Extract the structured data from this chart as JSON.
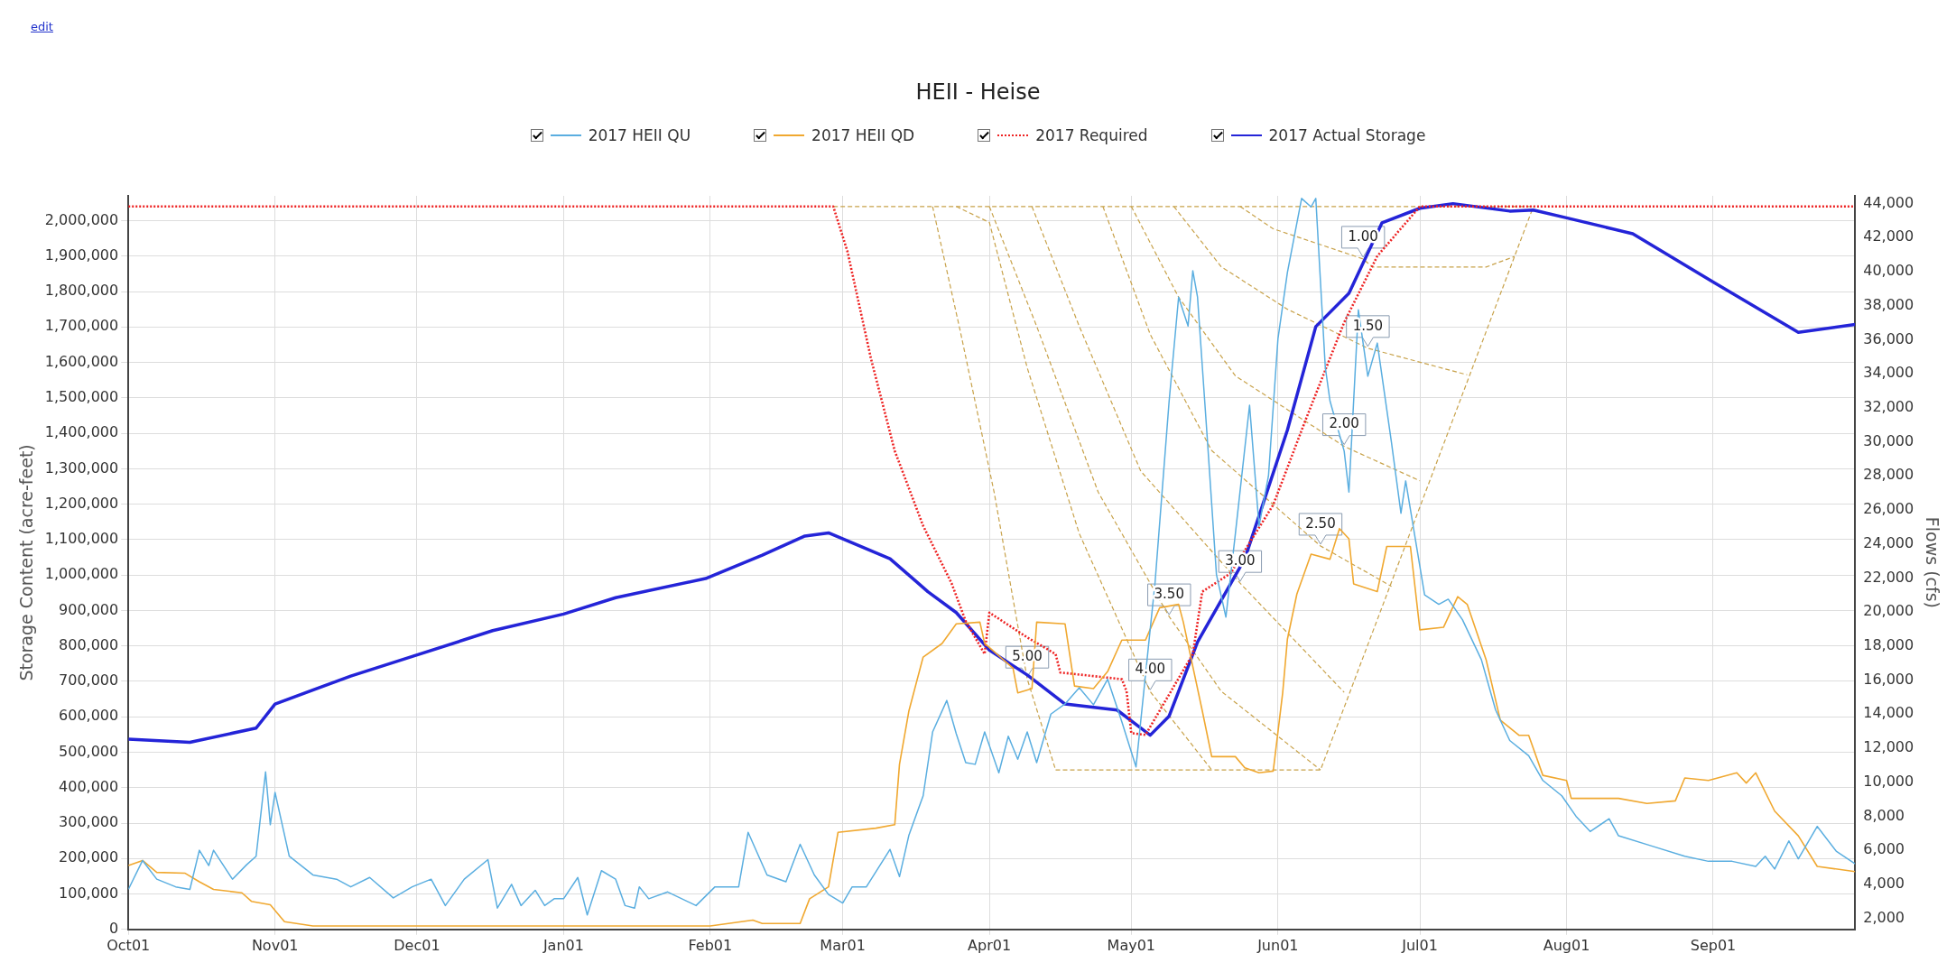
{
  "chart_data": {
    "type": "line",
    "title": "HEII  - Heise",
    "ylabel": "Storage Content (acre-feet)",
    "y2label": "Flows (cfs)",
    "xlim": [
      "2016-10-01",
      "2017-10-01"
    ],
    "xticks": [
      {
        "value": "2016-10-01",
        "label": "Oct01"
      },
      {
        "value": "2016-11-01",
        "label": "Nov01"
      },
      {
        "value": "2016-12-01",
        "label": "Dec01"
      },
      {
        "value": "2017-01-01",
        "label": "Jan01"
      },
      {
        "value": "2017-02-01",
        "label": "Feb01"
      },
      {
        "value": "2017-03-01",
        "label": "Mar01"
      },
      {
        "value": "2017-04-01",
        "label": "Apr01"
      },
      {
        "value": "2017-05-01",
        "label": "May01"
      },
      {
        "value": "2017-06-01",
        "label": "Jun01"
      },
      {
        "value": "2017-07-01",
        "label": "Jul01"
      },
      {
        "value": "2017-08-01",
        "label": "Aug01"
      },
      {
        "value": "2017-09-01",
        "label": "Sep01"
      }
    ],
    "ylim": [
      0,
      2070000
    ],
    "yticks": [
      0,
      {
        "value": 100000,
        "label": "100,000"
      },
      {
        "value": 200000,
        "label": "200,000"
      },
      {
        "value": 300000,
        "label": "300,000"
      },
      {
        "value": 400000,
        "label": "400,000"
      },
      {
        "value": 500000,
        "label": "500,000"
      },
      {
        "value": 600000,
        "label": "600,000"
      },
      {
        "value": 700000,
        "label": "700,000"
      },
      {
        "value": 800000,
        "label": "800,000"
      },
      {
        "value": 900000,
        "label": "900,000"
      },
      {
        "value": 1000000,
        "label": "1,000,000"
      },
      {
        "value": 1100000,
        "label": "1,100,000"
      },
      {
        "value": 1200000,
        "label": "1,200,000"
      },
      {
        "value": 1300000,
        "label": "1,300,000"
      },
      {
        "value": 1400000,
        "label": "1,400,000"
      },
      {
        "value": 1500000,
        "label": "1,500,000"
      },
      {
        "value": 1600000,
        "label": "1,600,000"
      },
      {
        "value": 1700000,
        "label": "1,700,000"
      },
      {
        "value": 1800000,
        "label": "1,800,000"
      },
      {
        "value": 1900000,
        "label": "1,900,000"
      },
      {
        "value": 2000000,
        "label": "2,000,000"
      }
    ],
    "y2lim": [
      1350,
      44450
    ],
    "y2ticks": [
      {
        "value": 2000,
        "label": "2,000"
      },
      {
        "value": 4000,
        "label": "4,000"
      },
      {
        "value": 6000,
        "label": "6,000"
      },
      {
        "value": 8000,
        "label": "8,000"
      },
      {
        "value": 10000,
        "label": "10,000"
      },
      {
        "value": 12000,
        "label": "12,000"
      },
      {
        "value": 14000,
        "label": "14,000"
      },
      {
        "value": 16000,
        "label": "16,000"
      },
      {
        "value": 18000,
        "label": "18,000"
      },
      {
        "value": 20000,
        "label": "20,000"
      },
      {
        "value": 22000,
        "label": "22,000"
      },
      {
        "value": 24000,
        "label": "24,000"
      },
      {
        "value": 26000,
        "label": "26,000"
      },
      {
        "value": 28000,
        "label": "28,000"
      },
      {
        "value": 30000,
        "label": "30,000"
      },
      {
        "value": 32000,
        "label": "32,000"
      },
      {
        "value": 34000,
        "label": "34,000"
      },
      {
        "value": 36000,
        "label": "36,000"
      },
      {
        "value": 38000,
        "label": "38,000"
      },
      {
        "value": 40000,
        "label": "40,000"
      },
      {
        "value": 42000,
        "label": "42,000"
      },
      {
        "value": 44000,
        "label": "44,000"
      }
    ],
    "grid": true,
    "legend": "top",
    "series": [
      {
        "name": "2017 HEII QU",
        "color": "#5aaee0",
        "axis": "y2",
        "line_style": "solid",
        "x": [
          "2016-10-01",
          "2016-10-04",
          "2016-10-07",
          "2016-10-11",
          "2016-10-14",
          "2016-10-16",
          "2016-10-18",
          "2016-10-19",
          "2016-10-23",
          "2016-10-26",
          "2016-10-28",
          "2016-10-30",
          "2016-10-31",
          "2016-11-01",
          "2016-11-04",
          "2016-11-09",
          "2016-11-14",
          "2016-11-17",
          "2016-11-21",
          "2016-11-26",
          "2016-11-30",
          "2016-12-04",
          "2016-12-07",
          "2016-12-11",
          "2016-12-16",
          "2016-12-18",
          "2016-12-21",
          "2016-12-23",
          "2016-12-26",
          "2016-12-28",
          "2016-12-30",
          "2017-01-01",
          "2017-01-04",
          "2017-01-06",
          "2017-01-09",
          "2017-01-12",
          "2017-01-14",
          "2017-01-16",
          "2017-01-17",
          "2017-01-19",
          "2017-01-23",
          "2017-01-29",
          "2017-02-02",
          "2017-02-07",
          "2017-02-09",
          "2017-02-13",
          "2017-02-17",
          "2017-02-20",
          "2017-02-23",
          "2017-02-26",
          "2017-03-01",
          "2017-03-03",
          "2017-03-06",
          "2017-03-11",
          "2017-03-13",
          "2017-03-15",
          "2017-03-18",
          "2017-03-20",
          "2017-03-23",
          "2017-03-25",
          "2017-03-27",
          "2017-03-29",
          "2017-03-31",
          "2017-04-03",
          "2017-04-05",
          "2017-04-07",
          "2017-04-09",
          "2017-04-11",
          "2017-04-14",
          "2017-04-17",
          "2017-04-20",
          "2017-04-23",
          "2017-04-26",
          "2017-04-29",
          "2017-05-02",
          "2017-05-05",
          "2017-05-06",
          "2017-05-09",
          "2017-05-11",
          "2017-05-13",
          "2017-05-14",
          "2017-05-15",
          "2017-05-17",
          "2017-05-19",
          "2017-05-21",
          "2017-05-23",
          "2017-05-26",
          "2017-05-28",
          "2017-05-30",
          "2017-06-01",
          "2017-06-03",
          "2017-06-06",
          "2017-06-08",
          "2017-06-09",
          "2017-06-11",
          "2017-06-12",
          "2017-06-15",
          "2017-06-16",
          "2017-06-18",
          "2017-06-20",
          "2017-06-22",
          "2017-06-25",
          "2017-06-27",
          "2017-06-28",
          "2017-07-02",
          "2017-07-05",
          "2017-07-07",
          "2017-07-10",
          "2017-07-14",
          "2017-07-17",
          "2017-07-20",
          "2017-07-24",
          "2017-07-27",
          "2017-07-31",
          "2017-08-03",
          "2017-08-06",
          "2017-08-10",
          "2017-08-12",
          "2017-08-19",
          "2017-08-26",
          "2017-08-31",
          "2017-09-05",
          "2017-09-10",
          "2017-09-12",
          "2017-09-14",
          "2017-09-17",
          "2017-09-19",
          "2017-09-23",
          "2017-09-27",
          "2017-10-01"
        ],
        "values": [
          3700,
          5400,
          4300,
          3850,
          3700,
          6000,
          5100,
          6000,
          4300,
          5150,
          5650,
          10600,
          7500,
          9400,
          5650,
          4550,
          4300,
          3850,
          4400,
          3200,
          3850,
          4300,
          2750,
          4300,
          5450,
          2600,
          4000,
          2750,
          3650,
          2750,
          3150,
          3150,
          4400,
          2200,
          4800,
          4300,
          2750,
          2600,
          3850,
          3150,
          3550,
          2750,
          3850,
          3850,
          7050,
          4550,
          4150,
          6350,
          4550,
          3400,
          2900,
          3850,
          3850,
          6050,
          4450,
          6900,
          9200,
          12950,
          14800,
          12850,
          11150,
          11050,
          12950,
          10550,
          12700,
          11350,
          12950,
          11150,
          14000,
          14600,
          15550,
          14550,
          16050,
          13550,
          10900,
          19000,
          21650,
          32400,
          38500,
          36800,
          40050,
          38500,
          30450,
          22200,
          19700,
          24600,
          32150,
          25050,
          28000,
          36050,
          39950,
          44300,
          43800,
          44300,
          34400,
          32400,
          29450,
          27050,
          37750,
          33850,
          35800,
          29950,
          25800,
          27700,
          21000,
          20450,
          20750,
          19550,
          17200,
          14250,
          12450,
          11550,
          10100,
          9200,
          8000,
          7100,
          7850,
          6850,
          6250,
          5650,
          5350,
          5350,
          5050,
          5650,
          4900,
          6550,
          5500,
          7400,
          5950,
          5200
        ]
      },
      {
        "name": "2017 HEII QD",
        "color": "#f0a830",
        "axis": "y2",
        "line_style": "solid",
        "x": [
          "2016-10-01",
          "2016-10-04",
          "2016-10-07",
          "2016-10-13",
          "2016-10-16",
          "2016-10-19",
          "2016-10-25",
          "2016-10-27",
          "2016-10-31",
          "2016-11-03",
          "2016-11-09",
          "2017-02-01",
          "2017-02-10",
          "2017-02-12",
          "2017-02-20",
          "2017-02-22",
          "2017-02-26",
          "2017-02-28",
          "2017-03-08",
          "2017-03-12",
          "2017-03-13",
          "2017-03-15",
          "2017-03-18",
          "2017-03-22",
          "2017-03-25",
          "2017-03-30",
          "2017-03-31",
          "2017-04-06",
          "2017-04-07",
          "2017-04-10",
          "2017-04-11",
          "2017-04-17",
          "2017-04-19",
          "2017-04-23",
          "2017-04-26",
          "2017-04-29",
          "2017-05-04",
          "2017-05-07",
          "2017-05-11",
          "2017-05-12",
          "2017-05-16",
          "2017-05-18",
          "2017-05-23",
          "2017-05-25",
          "2017-05-28",
          "2017-05-31",
          "2017-06-02",
          "2017-06-03",
          "2017-06-05",
          "2017-06-08",
          "2017-06-12",
          "2017-06-14",
          "2017-06-16",
          "2017-06-17",
          "2017-06-22",
          "2017-06-24",
          "2017-06-29",
          "2017-07-01",
          "2017-07-06",
          "2017-07-09",
          "2017-07-11",
          "2017-07-15",
          "2017-07-18",
          "2017-07-22",
          "2017-07-24",
          "2017-07-27",
          "2017-08-01",
          "2017-08-02",
          "2017-08-12",
          "2017-08-18",
          "2017-08-24",
          "2017-08-26",
          "2017-08-31",
          "2017-09-06",
          "2017-09-08",
          "2017-09-10",
          "2017-09-14",
          "2017-09-19",
          "2017-09-23",
          "2017-10-01"
        ],
        "values": [
          5100,
          5400,
          4700,
          4650,
          4150,
          3700,
          3500,
          3000,
          2800,
          1800,
          1550,
          1550,
          1900,
          1700,
          1700,
          3150,
          3850,
          7050,
          7300,
          7500,
          11050,
          14200,
          17350,
          18150,
          19300,
          19400,
          18150,
          16700,
          15250,
          15500,
          19400,
          19300,
          15650,
          15500,
          16500,
          18350,
          18350,
          20250,
          20450,
          19400,
          14200,
          11500,
          11500,
          10850,
          10550,
          10650,
          15250,
          18400,
          21050,
          23400,
          23100,
          24900,
          24300,
          21650,
          21200,
          23850,
          23850,
          18950,
          19100,
          20900,
          20450,
          17200,
          13650,
          12750,
          12750,
          10400,
          10100,
          9050,
          9050,
          8750,
          8900,
          10250,
          10100,
          10550,
          9950,
          10550,
          8300,
          6850,
          5050,
          4750
        ]
      },
      {
        "name": "2017 Required",
        "color": "#ee2222",
        "line_style": "dotted",
        "x": [
          "2016-10-01",
          "2017-02-27",
          "2017-03-02",
          "2017-03-07",
          "2017-03-12",
          "2017-03-18",
          "2017-03-24",
          "2017-03-27",
          "2017-03-31",
          "2017-04-01",
          "2017-04-09",
          "2017-04-15",
          "2017-04-16",
          "2017-04-29",
          "2017-04-30",
          "2017-05-01",
          "2017-05-04",
          "2017-05-14",
          "2017-05-16",
          "2017-05-22",
          "2017-05-31",
          "2017-06-07",
          "2017-06-15",
          "2017-06-22",
          "2017-07-01",
          "2017-10-01"
        ],
        "values": [
          2040000,
          2040000,
          1913000,
          1609000,
          1350000,
          1139000,
          977000,
          870000,
          777000,
          894000,
          824000,
          777000,
          725000,
          706000,
          672000,
          554000,
          549000,
          777000,
          953000,
          1005000,
          1198000,
          1443000,
          1713000,
          1900000,
          2040000,
          2040000
        ]
      },
      {
        "name": "2017 Actual Storage",
        "color": "#2424d8",
        "line_style": "solid",
        "x": [
          "2016-10-01",
          "2016-10-14",
          "2016-10-28",
          "2016-11-01",
          "2016-11-17",
          "2016-11-30",
          "2016-12-17",
          "2017-01-01",
          "2017-01-12",
          "2017-01-31",
          "2017-02-12",
          "2017-02-21",
          "2017-02-26",
          "2017-03-11",
          "2017-03-19",
          "2017-03-25",
          "2017-04-01",
          "2017-04-09",
          "2017-04-17",
          "2017-04-28",
          "2017-05-05",
          "2017-05-09",
          "2017-05-15",
          "2017-05-25",
          "2017-06-03",
          "2017-06-09",
          "2017-06-16",
          "2017-06-23",
          "2017-07-01",
          "2017-07-08",
          "2017-07-20",
          "2017-07-25",
          "2017-08-01",
          "2017-08-15",
          "2017-09-01",
          "2017-09-19",
          "2017-10-01"
        ],
        "values": [
          537000,
          528000,
          568000,
          636000,
          715000,
          770000,
          843000,
          890000,
          936000,
          990000,
          1056000,
          1110000,
          1119000,
          1046000,
          953000,
          894000,
          788000,
          718000,
          636000,
          619000,
          548000,
          602000,
          811000,
          1046000,
          1409000,
          1701000,
          1795000,
          1994000,
          2035000,
          2048000,
          2027000,
          2030000,
          2008000,
          1963000,
          1827000,
          1685000,
          1707000
        ]
      },
      {
        "color": "#c8a24a",
        "line_style": "dashed",
        "x": [
          "2017-02-27",
          "2017-07-25"
        ],
        "values": [
          2040000,
          2040000
        ]
      },
      {
        "color": "#c8a24a",
        "line_style": "dashed",
        "x": [
          "2017-04-15",
          "2017-06-10",
          "2017-07-25"
        ],
        "values": [
          450000,
          450000,
          2040000
        ]
      },
      {
        "color": "#c8a24a",
        "line_style": "dashed",
        "x": [
          "2017-03-20",
          "2017-03-26",
          "2017-04-02",
          "2017-04-09",
          "2017-04-15"
        ],
        "values": [
          2040000,
          1679000,
          1234000,
          707000,
          450000
        ]
      },
      {
        "color": "#c8a24a",
        "line_style": "dashed",
        "x": [
          "2017-03-25",
          "2017-04-01",
          "2017-04-09",
          "2017-04-20",
          "2017-05-05",
          "2017-05-18"
        ],
        "values": [
          2040000,
          1995000,
          1585000,
          1117000,
          671000,
          450000
        ]
      },
      {
        "color": "#c8a24a",
        "line_style": "dashed",
        "x": [
          "2017-04-01",
          "2017-04-11",
          "2017-04-24",
          "2017-05-09",
          "2017-05-20",
          "2017-06-10"
        ],
        "values": [
          2040000,
          1702000,
          1234000,
          883000,
          672000,
          450000
        ]
      },
      {
        "color": "#c8a24a",
        "line_style": "dashed",
        "x": [
          "2017-04-10",
          "2017-04-20",
          "2017-05-03",
          "2017-05-24",
          "2017-06-15"
        ],
        "values": [
          2040000,
          1702000,
          1293000,
          977000,
          669000
        ]
      },
      {
        "color": "#c8a24a",
        "line_style": "dashed",
        "x": [
          "2017-04-25",
          "2017-05-05",
          "2017-05-18",
          "2017-06-10",
          "2017-06-25"
        ],
        "values": [
          2040000,
          1679000,
          1351000,
          1082000,
          968000
        ]
      },
      {
        "color": "#c8a24a",
        "line_style": "dashed",
        "x": [
          "2017-05-01",
          "2017-05-11",
          "2017-05-23",
          "2017-06-15",
          "2017-07-01"
        ],
        "values": [
          2040000,
          1784000,
          1562000,
          1363000,
          1266000
        ]
      },
      {
        "color": "#c8a24a",
        "line_style": "dashed",
        "x": [
          "2017-05-10",
          "2017-05-20",
          "2017-06-03",
          "2017-06-20",
          "2017-07-11"
        ],
        "values": [
          2040000,
          1870000,
          1750000,
          1640000,
          1565000
        ]
      },
      {
        "color": "#c8a24a",
        "line_style": "dashed",
        "x": [
          "2017-05-24",
          "2017-05-31",
          "2017-06-19",
          "2017-06-21",
          "2017-07-15",
          "2017-07-21"
        ],
        "values": [
          2040000,
          1977000,
          1892000,
          1869000,
          1869000,
          1899000
        ]
      }
    ],
    "annotations": [
      "edit",
      {
        "text": "5.00",
        "x": "2017-04-09",
        "y": 707000
      },
      {
        "text": "4.00",
        "x": "2017-05-05",
        "y": 671000
      },
      {
        "text": "3.50",
        "x": "2017-05-09",
        "y": 883000
      },
      {
        "text": "3.00",
        "x": "2017-05-24",
        "y": 977000
      },
      {
        "text": "2.50",
        "x": "2017-06-10",
        "y": 1082000
      },
      {
        "text": "2.00",
        "x": "2017-06-15",
        "y": 1363000
      },
      {
        "text": "1.50",
        "x": "2017-06-20",
        "y": 1640000
      },
      {
        "text": "1.00",
        "x": "2017-06-19",
        "y": 1892000
      }
    ]
  }
}
